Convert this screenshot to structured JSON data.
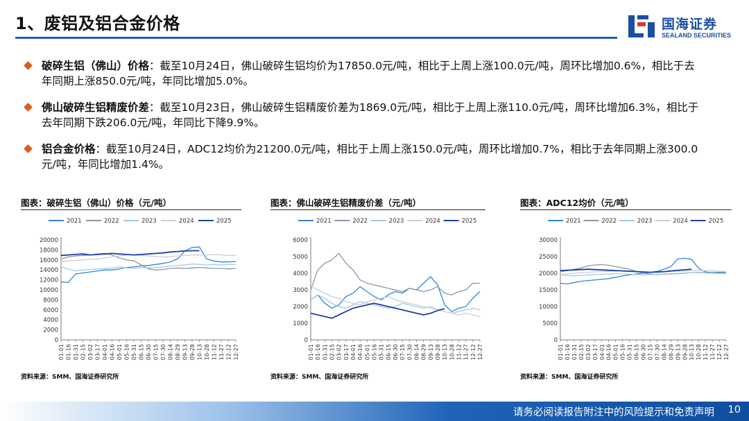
{
  "header": {
    "title": "1、废铝及铝合金价格",
    "logo_cn": "国海证券",
    "logo_en": "SEALAND SECURITIES"
  },
  "bullets": [
    {
      "label": "破碎生铝（佛山）价格",
      "text": "：截至10月24日，佛山破碎生铝均价为17850.0元/吨，相比于上周上涨100.0元/吨，周环比增加0.6%，相比于去年同期上涨850.0元/吨，年同比增加5.0%。"
    },
    {
      "label": "佛山破碎生铝精废价差",
      "text": "：截至10月23日，佛山破碎生铝精废价差为1869.0元/吨，相比于上周上涨110.0元/吨，周环比增加6.3%，相比于去年同期下跌206.0元/吨，年同比下降9.9%。"
    },
    {
      "label": "铝合金价格",
      "text": "：截至10月24日，ADC12均价为21200.0元/吨，相比于上周上涨150.0元/吨，周环比增加0.7%，相比于去年同期上涨300.0元/吨，年同比增加1.4%。"
    }
  ],
  "colors": {
    "accent": "#1f5fb5",
    "bullet": "#e05a1c",
    "s2021": "#2f86d6",
    "s2022": "#8a96a6",
    "s2023": "#9fc9ee",
    "s2024": "#c9cfd6",
    "s2025": "#1b3fa6"
  },
  "chart_data": [
    {
      "type": "line",
      "title": "图表：破碎生铝（佛山）价格（元/吨）",
      "source": "资料来源：SMM、国海证券研究所",
      "legend": [
        "2021",
        "2022",
        "2023",
        "2024",
        "2025"
      ],
      "legend_position": "top",
      "ylim": [
        0,
        20000
      ],
      "yticks": [
        0,
        2000,
        4000,
        6000,
        8000,
        10000,
        12000,
        14000,
        16000,
        18000,
        20000
      ],
      "x": [
        "01-01",
        "01-16",
        "01-31",
        "02-15",
        "03-02",
        "03-17",
        "04-01",
        "04-16",
        "05-01",
        "05-16",
        "05-31",
        "06-15",
        "06-30",
        "07-15",
        "07-30",
        "08-14",
        "08-29",
        "09-13",
        "09-28",
        "10-13",
        "10-28",
        "11-12",
        "11-27",
        "12-12",
        "12-27"
      ],
      "series": [
        {
          "name": "2021",
          "values": [
            11600,
            11500,
            13200,
            13400,
            13600,
            13800,
            14000,
            14000,
            14200,
            14500,
            14600,
            14800,
            14900,
            15100,
            15300,
            15600,
            16200,
            17800,
            18500,
            18600,
            16200,
            15800,
            15600,
            15600,
            15700
          ]
        },
        {
          "name": "2022",
          "values": [
            16200,
            16600,
            16800,
            16900,
            17000,
            17200,
            17300,
            17000,
            16400,
            16000,
            15800,
            15000,
            14200,
            14000,
            14100,
            14300,
            14400,
            14300,
            14400,
            14500,
            14400,
            14300,
            14300,
            14200,
            14300
          ]
        },
        {
          "name": "2023",
          "values": [
            14600,
            14200,
            13800,
            14000,
            14100,
            14200,
            14300,
            14400,
            14600,
            14400,
            14300,
            14500,
            14400,
            14500,
            14600,
            14800,
            14900,
            15000,
            15200,
            15100,
            15000,
            15100,
            15000,
            15100,
            15100
          ]
        },
        {
          "name": "2024",
          "values": [
            15600,
            15800,
            15900,
            16000,
            16100,
            16200,
            16400,
            16600,
            16800,
            17000,
            17000,
            16900,
            16800,
            16700,
            16600,
            16700,
            16800,
            16900,
            17000,
            17000,
            17000,
            17100,
            17000,
            16900,
            16900
          ]
        },
        {
          "name": "2025",
          "values": [
            16900,
            17000,
            17100,
            17200,
            17000,
            17100,
            17200,
            17300,
            17200,
            17100,
            17000,
            17100,
            17200,
            17300,
            17400,
            17600,
            17700,
            17800,
            17850,
            17850,
            null,
            null,
            null,
            null,
            null
          ]
        }
      ]
    },
    {
      "type": "line",
      "title": "图表：佛山破碎生铝精废价差（元/吨）",
      "source": "资料来源：SMM、国海证券研究所",
      "legend": [
        "2021",
        "2022",
        "2023",
        "2024",
        "2025"
      ],
      "legend_position": "top",
      "ylim": [
        0,
        6000
      ],
      "yticks": [
        0,
        1000,
        2000,
        3000,
        4000,
        5000,
        6000
      ],
      "x": [
        "01-01",
        "01-16",
        "01-31",
        "02-15",
        "03-02",
        "03-17",
        "04-01",
        "04-16",
        "05-01",
        "05-16",
        "05-31",
        "06-15",
        "06-30",
        "07-15",
        "07-30",
        "08-14",
        "08-29",
        "09-13",
        "09-28",
        "10-13",
        "10-28",
        "11-12",
        "11-27",
        "12-12",
        "12-27"
      ],
      "series": [
        {
          "name": "2021",
          "values": [
            2400,
            2700,
            2200,
            1900,
            2100,
            2600,
            2800,
            3200,
            2900,
            2600,
            2400,
            2700,
            2900,
            2800,
            3100,
            3000,
            3400,
            3800,
            3300,
            2100,
            1700,
            1900,
            2000,
            2500,
            2900
          ]
        },
        {
          "name": "2022",
          "values": [
            3000,
            4200,
            4600,
            4800,
            5200,
            4600,
            4200,
            3600,
            3400,
            3300,
            3200,
            3100,
            3000,
            2900,
            3100,
            3000,
            2900,
            3000,
            3200,
            2800,
            2700,
            2900,
            3000,
            3400,
            3400
          ]
        },
        {
          "name": "2023",
          "values": [
            2400,
            2700,
            2500,
            2200,
            2000,
            1900,
            2100,
            2300,
            2200,
            2100,
            2000,
            1900,
            2000,
            2200,
            2100,
            2000,
            1900,
            2000,
            1800,
            1700,
            1600,
            1700,
            1800,
            1900,
            1800
          ]
        },
        {
          "name": "2024",
          "values": [
            3200,
            3000,
            2800,
            2600,
            2500,
            2300,
            2200,
            2100,
            2300,
            2400,
            2500,
            2600,
            2400,
            2300,
            2200,
            2100,
            2000,
            1900,
            1800,
            1700,
            1600,
            1500,
            1600,
            1500,
            1400
          ]
        },
        {
          "name": "2025",
          "values": [
            1600,
            1500,
            1400,
            1300,
            1500,
            1700,
            1900,
            2000,
            2100,
            2200,
            2100,
            2000,
            1900,
            1800,
            1700,
            1600,
            1500,
            1600,
            1759,
            1869,
            null,
            null,
            null,
            null,
            null
          ]
        }
      ]
    },
    {
      "type": "line",
      "title": "图表：ADC12均价（元/吨）",
      "source": "资料来源：SMM、国海证券研究所",
      "legend": [
        "2021",
        "2022",
        "2023",
        "2024",
        "2025"
      ],
      "legend_position": "top",
      "ylim": [
        0,
        30000
      ],
      "yticks": [
        0,
        5000,
        10000,
        15000,
        20000,
        25000,
        30000
      ],
      "x": [
        "01-01",
        "01-16",
        "01-31",
        "02-15",
        "03-02",
        "03-17",
        "04-01",
        "04-16",
        "05-01",
        "05-16",
        "05-31",
        "06-15",
        "06-30",
        "07-15",
        "07-30",
        "08-14",
        "08-29",
        "09-13",
        "09-28",
        "10-13",
        "10-28",
        "11-12",
        "11-27",
        "12-12",
        "12-27"
      ],
      "series": [
        {
          "name": "2021",
          "values": [
            17000,
            16800,
            17200,
            17600,
            17800,
            18000,
            18200,
            18400,
            18800,
            19200,
            19500,
            19800,
            20000,
            20300,
            20600,
            21200,
            22000,
            24300,
            24500,
            24200,
            21500,
            20400,
            20200,
            20300,
            20400
          ]
        },
        {
          "name": "2022",
          "values": [
            20500,
            20800,
            21200,
            21600,
            22200,
            22500,
            22600,
            22400,
            22000,
            21600,
            21200,
            20600,
            20000,
            19800,
            19600,
            19700,
            19800,
            19900,
            20000,
            20200,
            20300,
            20200,
            20100,
            20000,
            20100
          ]
        },
        {
          "name": "2023",
          "values": [
            19500,
            19300,
            19200,
            19400,
            19500,
            19600,
            19700,
            19800,
            19900,
            19800,
            19700,
            19600,
            19500,
            19600,
            19700,
            19800,
            19900,
            20000,
            20100,
            20200,
            20200,
            20100,
            20000,
            19900,
            19900
          ]
        },
        {
          "name": "2024",
          "values": [
            19600,
            19800,
            20000,
            20200,
            20300,
            20400,
            20500,
            20600,
            20700,
            20800,
            20700,
            20600,
            20500,
            20400,
            20300,
            20400,
            20500,
            20600,
            20700,
            20800,
            20900,
            20800,
            20700,
            20600,
            20500
          ]
        },
        {
          "name": "2025",
          "values": [
            20800,
            20900,
            21000,
            21100,
            21200,
            21100,
            21000,
            20900,
            20800,
            20700,
            20600,
            20500,
            20400,
            20300,
            20400,
            20500,
            20700,
            20900,
            21050,
            21200,
            null,
            null,
            null,
            null,
            null
          ]
        }
      ]
    }
  ],
  "footer": {
    "disclaimer": "请务必阅读报告附注中的风险提示和免责声明",
    "page": "10"
  }
}
